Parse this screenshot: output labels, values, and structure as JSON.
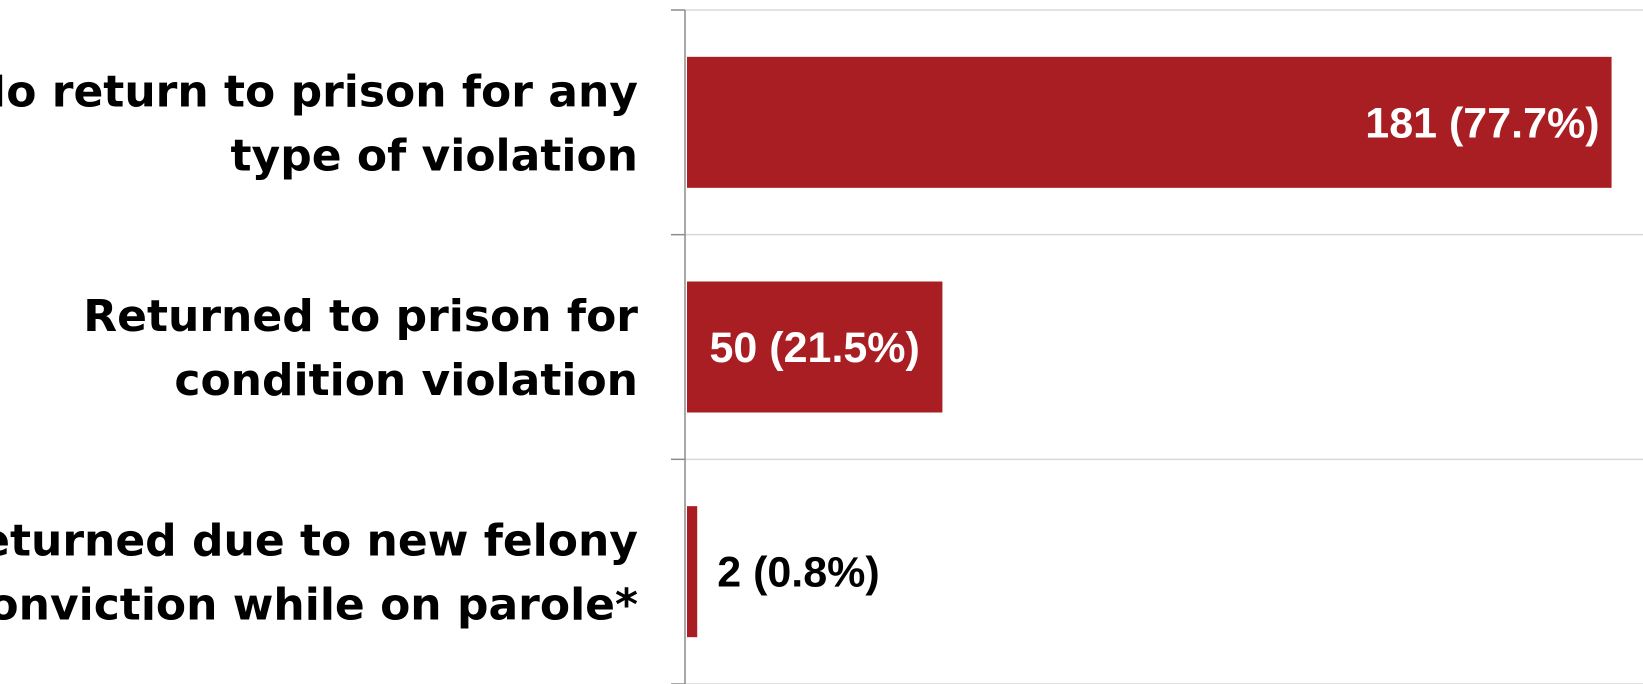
{
  "chart_data": {
    "type": "bar",
    "orientation": "horizontal",
    "categories": [
      [
        "No return to prison for any",
        "type of violation"
      ],
      [
        "Returned to prison for",
        "condition violation"
      ],
      [
        "Returned due to new felony",
        "conviction while on parole*"
      ]
    ],
    "values": [
      181,
      50,
      2
    ],
    "data_labels": [
      "181 (77.7%)",
      "50 (21.5%)",
      "2 (0.8%)"
    ],
    "xlim": [
      0,
      185
    ],
    "grid": true,
    "bar_color": "#a81e22",
    "label_color_inside": "#ffffff",
    "label_color_outside": "#000000"
  }
}
